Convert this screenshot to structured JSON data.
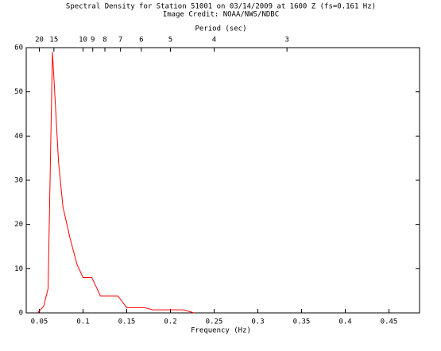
{
  "chart_data": {
    "type": "line",
    "title": "Spectral Density for Station 51001 on 03/14/2009 at 1600 Z (fs=0.161 Hz)",
    "subtitle": "Image Credit: NOAA/NWS/NDBC",
    "xlabel": "Frequency (Hz)",
    "x2label": "Period (sec)",
    "xlim": [
      0.035,
      0.485
    ],
    "ylim": [
      0,
      60
    ],
    "xticks": [
      0.05,
      0.1,
      0.15,
      0.2,
      0.25,
      0.3,
      0.35,
      0.4,
      0.45
    ],
    "yticks": [
      0,
      10,
      20,
      30,
      40,
      50,
      60
    ],
    "period_ticks": [
      20,
      15,
      10,
      9,
      8,
      7,
      6,
      5,
      4,
      3
    ],
    "series": [
      {
        "color": "#ff0000",
        "x": [
          0.048,
          0.055,
          0.06,
          0.065,
          0.067,
          0.072,
          0.077,
          0.085,
          0.093,
          0.1,
          0.11,
          0.12,
          0.14,
          0.15,
          0.17,
          0.18,
          0.215,
          0.227
        ],
        "values": [
          0,
          1.5,
          5.5,
          59,
          52,
          34,
          24,
          17,
          11,
          8,
          8,
          3.8,
          3.8,
          1.2,
          1.2,
          0.7,
          0.7,
          0
        ]
      }
    ]
  }
}
